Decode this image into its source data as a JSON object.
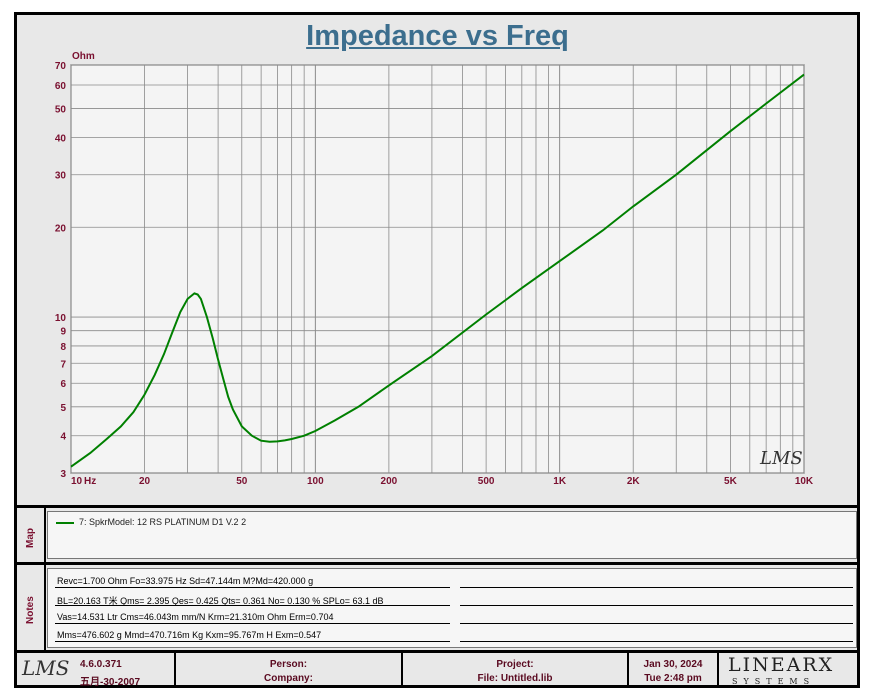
{
  "title": "Impedance vs Freq",
  "plot_watermark": "LMS",
  "chart_data": {
    "type": "line",
    "title": "Impedance vs Freq",
    "ylabel": "Ohm",
    "xlabel": "Hz",
    "x_scale": "log",
    "y_scale": "log",
    "xlim": [
      10,
      10000
    ],
    "ylim": [
      3,
      70
    ],
    "grid": true,
    "x_ticks": [
      {
        "value": 10,
        "label": "10"
      },
      {
        "value": 20,
        "label": "20"
      },
      {
        "value": 50,
        "label": "50"
      },
      {
        "value": 100,
        "label": "100"
      },
      {
        "value": 200,
        "label": "200"
      },
      {
        "value": 500,
        "label": "500"
      },
      {
        "value": 1000,
        "label": "1K"
      },
      {
        "value": 2000,
        "label": "2K"
      },
      {
        "value": 5000,
        "label": "5K"
      },
      {
        "value": 10000,
        "label": "10K"
      }
    ],
    "y_ticks": [
      {
        "value": 3,
        "label": "3"
      },
      {
        "value": 4,
        "label": "4"
      },
      {
        "value": 5,
        "label": "5"
      },
      {
        "value": 6,
        "label": "6"
      },
      {
        "value": 7,
        "label": "7"
      },
      {
        "value": 8,
        "label": "8"
      },
      {
        "value": 9,
        "label": "9"
      },
      {
        "value": 10,
        "label": "10"
      },
      {
        "value": 20,
        "label": "20"
      },
      {
        "value": 30,
        "label": "30"
      },
      {
        "value": 40,
        "label": "40"
      },
      {
        "value": 50,
        "label": "50"
      },
      {
        "value": 60,
        "label": "60"
      },
      {
        "value": 70,
        "label": "70"
      }
    ],
    "series": [
      {
        "name": "7: SpkrModel: 12 RS PLATINUM  D1 V.2  2",
        "color": "#008000",
        "x": [
          10,
          12,
          14,
          16,
          18,
          20,
          22,
          24,
          26,
          28,
          30,
          32,
          33,
          34,
          36,
          38,
          40,
          42,
          44,
          46,
          50,
          55,
          60,
          65,
          70,
          75,
          80,
          90,
          100,
          120,
          150,
          200,
          300,
          500,
          700,
          1000,
          1500,
          2000,
          3000,
          5000,
          7000,
          10000
        ],
        "y": [
          3.15,
          3.5,
          3.9,
          4.3,
          4.8,
          5.5,
          6.4,
          7.5,
          8.9,
          10.4,
          11.5,
          12.0,
          11.9,
          11.5,
          10.0,
          8.5,
          7.2,
          6.2,
          5.4,
          4.9,
          4.3,
          4.0,
          3.85,
          3.82,
          3.83,
          3.86,
          3.9,
          4.0,
          4.15,
          4.5,
          5.0,
          5.9,
          7.4,
          10.2,
          12.5,
          15.4,
          19.5,
          23.5,
          30.0,
          42.0,
          52.0,
          65.0
        ]
      }
    ]
  },
  "map_label": "Map",
  "legend": {
    "text": "7: SpkrModel: 12 RS PLATINUM  D1 V.2  2",
    "color": "#008000"
  },
  "notes_label": "Notes",
  "notes": [
    "Revc=1.700 Ohm  Fo=33.975 Hz  Sd=47.144m M?Md=420.000 g",
    "BL=20.163 T米  Qms= 2.395  Qes= 0.425  Qts= 0.361  No= 0.130 %  SPLo= 63.1 dB",
    "Vas=14.531 Ltr  Cms=46.043m mm/N  Krm=21.310m Ohm  Erm=0.704",
    "Mms=476.602 g  Mmd=470.716m Kg  Kxm=95.767m H  Exm=0.547"
  ],
  "footer": {
    "logo": "LMS",
    "version": "4.6.0.371",
    "build_date": "五月-30-2007",
    "person_label": "Person:",
    "company_label": "Company:",
    "project_label": "Project:",
    "file_label": "File: Untitled.lib",
    "date": "Jan 30, 2024",
    "time": "Tue  2:48 pm",
    "brand_line1": "LINEARX",
    "brand_line2": "SYSTEMS"
  }
}
